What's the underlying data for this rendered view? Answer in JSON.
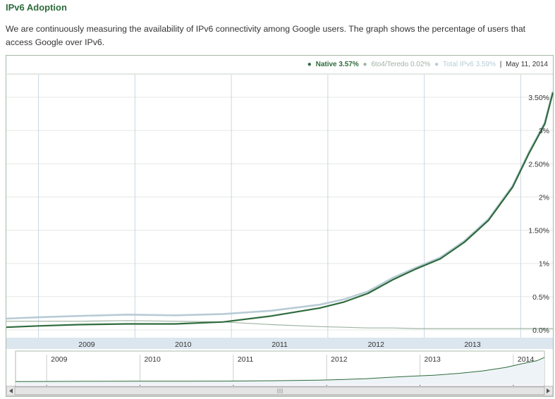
{
  "page": {
    "title": "IPv6 Adoption",
    "description": "We are continuously measuring the availability of IPv6 connectivity among Google users. The graph shows the percentage of users that access Google over IPv6."
  },
  "legend": {
    "native": "Native 3.57%",
    "sixto4": "6to4/Teredo 0.02%",
    "total": "Total IPv6 3.59%",
    "separator": "|",
    "date": "May 11, 2014"
  },
  "chart_data": {
    "type": "line",
    "title": "",
    "xlabel": "",
    "ylabel": "",
    "y_ticks": [
      "0.0%",
      "0.5%",
      "1%",
      "1.50%",
      "2%",
      "2.50%",
      "3%",
      "3.50%"
    ],
    "y_tick_values": [
      0,
      0.5,
      1,
      1.5,
      2,
      2.5,
      3,
      3.5
    ],
    "ylim": [
      0,
      3.5
    ],
    "x_ticks": [
      "2009",
      "2010",
      "2011",
      "2012",
      "2013"
    ],
    "navigator_ticks": [
      "2009",
      "2010",
      "2011",
      "2012",
      "2013",
      "2014"
    ],
    "x_range": [
      "2008-09",
      "2014-05"
    ],
    "grid": true,
    "legend_position": "top-right",
    "colors": {
      "native": "#2e6b3c",
      "sixto4": "#9fb3a4",
      "total": "#b8cbd6",
      "axis_band": "#dce6ef"
    },
    "x": [
      "2008-09",
      "2009-01",
      "2009-06",
      "2009-12",
      "2010-06",
      "2010-12",
      "2011-06",
      "2011-12",
      "2012-03",
      "2012-06",
      "2012-09",
      "2012-12",
      "2013-03",
      "2013-06",
      "2013-09",
      "2013-12",
      "2014-02",
      "2014-04",
      "2014-05"
    ],
    "series": [
      {
        "name": "Native",
        "values": [
          0.04,
          0.06,
          0.08,
          0.09,
          0.09,
          0.12,
          0.21,
          0.33,
          0.42,
          0.55,
          0.75,
          0.92,
          1.07,
          1.32,
          1.65,
          2.15,
          2.65,
          3.1,
          3.57
        ]
      },
      {
        "name": "6to4/Teredo",
        "values": [
          0.13,
          0.13,
          0.13,
          0.14,
          0.13,
          0.12,
          0.08,
          0.05,
          0.04,
          0.03,
          0.03,
          0.02,
          0.02,
          0.02,
          0.02,
          0.02,
          0.02,
          0.02,
          0.02
        ]
      },
      {
        "name": "Total IPv6",
        "values": [
          0.17,
          0.19,
          0.21,
          0.23,
          0.22,
          0.24,
          0.29,
          0.38,
          0.46,
          0.58,
          0.78,
          0.94,
          1.09,
          1.34,
          1.67,
          2.17,
          2.67,
          3.12,
          3.59
        ]
      }
    ]
  }
}
